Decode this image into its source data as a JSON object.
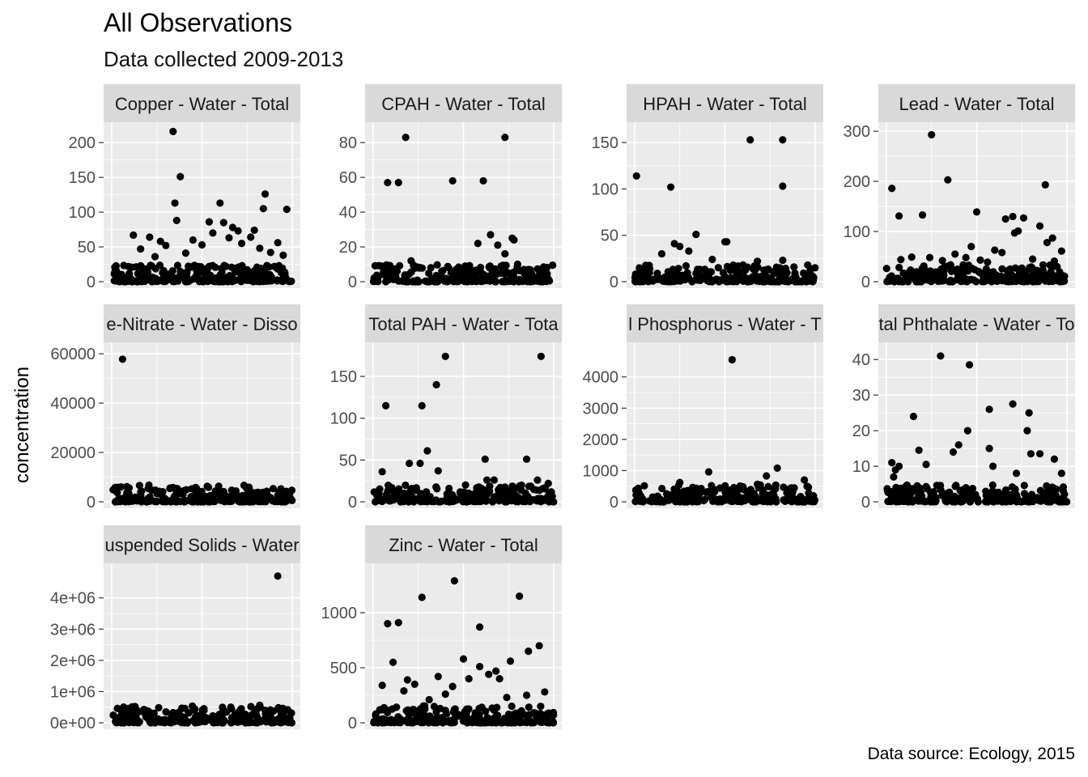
{
  "title": "All Observations",
  "subtitle": "Data collected 2009-2013",
  "caption": "Data source: Ecology, 2015",
  "chart_data": {
    "type": "scatter",
    "ylabel": "concentration",
    "xlabel": "",
    "grid": true,
    "facet_scales": "free",
    "point_color": "#000000",
    "panel_background": "#EBEBEB",
    "strip_background": "#D9D9D9",
    "panels": [
      {
        "strip": "Copper - Water - Total",
        "ylim": [
          0,
          220
        ],
        "yticks": [
          0,
          50,
          100,
          150,
          200
        ],
        "ytick_labels": [
          "0",
          "50",
          "100",
          "150",
          "200"
        ],
        "points": [
          [
            0.34,
            216
          ],
          [
            0.38,
            151
          ],
          [
            0.35,
            113
          ],
          [
            0.6,
            113
          ],
          [
            0.36,
            88
          ],
          [
            0.7,
            73
          ],
          [
            0.79,
            74
          ],
          [
            0.84,
            105
          ],
          [
            0.85,
            126
          ],
          [
            0.97,
            104
          ],
          [
            0.54,
            86
          ],
          [
            0.62,
            85
          ],
          [
            0.67,
            78
          ],
          [
            0.77,
            64
          ],
          [
            0.92,
            56
          ],
          [
            0.12,
            67
          ],
          [
            0.21,
            64
          ],
          [
            0.27,
            58
          ],
          [
            0.3,
            52
          ],
          [
            0.16,
            47
          ],
          [
            0.45,
            60
          ],
          [
            0.5,
            53
          ],
          [
            0.56,
            70
          ],
          [
            0.65,
            63
          ],
          [
            0.72,
            55
          ],
          [
            0.82,
            48
          ],
          [
            0.88,
            42
          ],
          [
            0.95,
            38
          ],
          [
            0.41,
            41
          ],
          [
            0.24,
            36
          ]
        ]
      },
      {
        "strip": "CPAH - Water - Total",
        "ylim": [
          0,
          88
        ],
        "yticks": [
          0,
          20,
          40,
          60,
          80
        ],
        "ytick_labels": [
          "0",
          "20",
          "40",
          "60",
          "80"
        ],
        "points": [
          [
            0.18,
            83
          ],
          [
            0.14,
            57
          ],
          [
            0.08,
            57
          ],
          [
            0.73,
            83
          ],
          [
            0.61,
            58
          ],
          [
            0.44,
            58
          ],
          [
            0.65,
            27
          ],
          [
            0.58,
            22
          ],
          [
            0.77,
            25
          ],
          [
            0.78,
            24
          ],
          [
            0.69,
            21
          ],
          [
            0.73,
            16
          ],
          [
            0.8,
            10
          ],
          [
            0.51,
            9
          ],
          [
            0.26,
            8
          ],
          [
            0.38,
            6
          ],
          [
            0.86,
            7
          ],
          [
            0.6,
            5
          ],
          [
            0.21,
            12
          ]
        ]
      },
      {
        "strip": "HPAH - Water - Total",
        "ylim": [
          0,
          165
        ],
        "yticks": [
          0,
          50,
          100,
          150
        ],
        "ytick_labels": [
          "0",
          "50",
          "100",
          "150"
        ],
        "points": [
          [
            0.64,
            153
          ],
          [
            0.82,
            153
          ],
          [
            0.01,
            114
          ],
          [
            0.2,
            102
          ],
          [
            0.82,
            103
          ],
          [
            0.34,
            51
          ],
          [
            0.5,
            43
          ],
          [
            0.51,
            43
          ],
          [
            0.22,
            41
          ],
          [
            0.25,
            38
          ],
          [
            0.3,
            33
          ],
          [
            0.15,
            30
          ],
          [
            0.68,
            22
          ],
          [
            0.82,
            23
          ],
          [
            0.43,
            24
          ],
          [
            0.6,
            18
          ],
          [
            0.07,
            13
          ],
          [
            0.34,
            9
          ],
          [
            0.04,
            9
          ]
        ]
      },
      {
        "strip": "Lead - Water - Total",
        "ylim": [
          0,
          305
        ],
        "yticks": [
          0,
          100,
          200,
          300
        ],
        "ytick_labels": [
          "0",
          "100",
          "200",
          "300"
        ],
        "points": [
          [
            0.25,
            293
          ],
          [
            0.03,
            186
          ],
          [
            0.34,
            203
          ],
          [
            0.88,
            193
          ],
          [
            0.07,
            131
          ],
          [
            0.2,
            133
          ],
          [
            0.5,
            139
          ],
          [
            0.7,
            130
          ],
          [
            0.66,
            125
          ],
          [
            0.76,
            127
          ],
          [
            0.73,
            101
          ],
          [
            0.71,
            97
          ],
          [
            0.85,
            111
          ],
          [
            0.92,
            87
          ],
          [
            0.89,
            78
          ],
          [
            0.47,
            70
          ],
          [
            0.6,
            63
          ],
          [
            0.64,
            58
          ],
          [
            0.97,
            61
          ],
          [
            0.44,
            48
          ],
          [
            0.08,
            44
          ],
          [
            0.14,
            49
          ],
          [
            0.24,
            48
          ],
          [
            0.31,
            42
          ],
          [
            0.38,
            55
          ],
          [
            0.52,
            43
          ],
          [
            0.56,
            39
          ],
          [
            0.81,
            45
          ],
          [
            0.93,
            41
          ]
        ]
      },
      {
        "strip": "e-Nitrate - Water - Disso",
        "ylim": [
          0,
          62000
        ],
        "yticks": [
          0,
          20000,
          40000,
          60000
        ],
        "ytick_labels": [
          "0",
          "20000",
          "40000",
          "60000"
        ],
        "points": [
          [
            0.06,
            57800
          ],
          [
            0.76,
            3500
          ],
          [
            0.61,
            2700
          ],
          [
            0.28,
            2300
          ],
          [
            0.44,
            2100
          ],
          [
            0.13,
            1900
          ],
          [
            0.88,
            1700
          ],
          [
            0.52,
            1600
          ]
        ]
      },
      {
        "strip": "Total PAH - Water - Tota",
        "ylim": [
          0,
          183
        ],
        "yticks": [
          0,
          50,
          100,
          150
        ],
        "ytick_labels": [
          "0",
          "50",
          "100",
          "150"
        ],
        "points": [
          [
            0.4,
            174
          ],
          [
            0.93,
            174
          ],
          [
            0.35,
            140
          ],
          [
            0.07,
            115
          ],
          [
            0.27,
            115
          ],
          [
            0.3,
            61
          ],
          [
            0.05,
            36
          ],
          [
            0.2,
            46
          ],
          [
            0.26,
            46
          ],
          [
            0.36,
            37
          ],
          [
            0.62,
            51
          ],
          [
            0.85,
            51
          ],
          [
            0.63,
            26
          ],
          [
            0.67,
            26
          ],
          [
            0.91,
            26
          ],
          [
            0.97,
            22
          ],
          [
            0.42,
            16
          ],
          [
            0.6,
            16
          ],
          [
            0.12,
            11
          ]
        ]
      },
      {
        "strip": "l Phosphorus - Water - T",
        "ylim": [
          0,
          4900
        ],
        "yticks": [
          0,
          1000,
          2000,
          3000,
          4000
        ],
        "ytick_labels": [
          "0",
          "1000",
          "2000",
          "3000",
          "4000"
        ],
        "points": [
          [
            0.54,
            4550
          ],
          [
            0.79,
            1080
          ],
          [
            0.41,
            960
          ],
          [
            0.73,
            830
          ],
          [
            0.94,
            700
          ],
          [
            0.25,
            620
          ],
          [
            0.68,
            560
          ],
          [
            0.6,
            480
          ],
          [
            0.86,
            420
          ],
          [
            0.32,
            390
          ]
        ]
      },
      {
        "strip": "tal Phthalate - Water - To",
        "ylim": [
          0,
          43
        ],
        "yticks": [
          0,
          10,
          20,
          30,
          40
        ],
        "ytick_labels": [
          "0",
          "10",
          "20",
          "30",
          "40"
        ],
        "points": [
          [
            0.3,
            41
          ],
          [
            0.46,
            38.5
          ],
          [
            0.57,
            26
          ],
          [
            0.7,
            27.5
          ],
          [
            0.79,
            25
          ],
          [
            0.78,
            20
          ],
          [
            0.8,
            13.5
          ],
          [
            0.85,
            13.5
          ],
          [
            0.57,
            15
          ],
          [
            0.45,
            20
          ],
          [
            0.4,
            16
          ],
          [
            0.37,
            14
          ],
          [
            0.15,
            24
          ],
          [
            0.18,
            14.5
          ],
          [
            0.03,
            11
          ],
          [
            0.04,
            7
          ],
          [
            0.05,
            9
          ],
          [
            0.07,
            10
          ],
          [
            0.22,
            10.5
          ],
          [
            0.59,
            10
          ],
          [
            0.72,
            8
          ],
          [
            0.93,
            12
          ],
          [
            0.97,
            8
          ]
        ]
      },
      {
        "strip": "uspended Solids - Water",
        "ylim": [
          0,
          4900000
        ],
        "yticks": [
          0,
          1000000,
          2000000,
          3000000,
          4000000
        ],
        "ytick_labels": [
          "0e+00",
          "1e+06",
          "2e+06",
          "3e+06",
          "4e+06"
        ],
        "points": [
          [
            0.92,
            4700000
          ],
          [
            0.82,
            560000
          ],
          [
            0.66,
            500000
          ],
          [
            0.12,
            480000
          ],
          [
            0.2,
            380000
          ],
          [
            0.07,
            300000
          ],
          [
            0.35,
            260000
          ],
          [
            0.47,
            240000
          ],
          [
            0.56,
            220000
          ],
          [
            0.74,
            270000
          ],
          [
            0.95,
            200000
          ]
        ]
      },
      {
        "strip": "Zinc - Water - Total",
        "ylim": [
          0,
          1390
        ],
        "yticks": [
          0,
          500,
          1000
        ],
        "ytick_labels": [
          "0",
          "500",
          "1000"
        ],
        "points": [
          [
            0.45,
            1290
          ],
          [
            0.27,
            1140
          ],
          [
            0.81,
            1150
          ],
          [
            0.08,
            900
          ],
          [
            0.14,
            910
          ],
          [
            0.59,
            870
          ],
          [
            0.92,
            700
          ],
          [
            0.86,
            650
          ],
          [
            0.11,
            550
          ],
          [
            0.5,
            580
          ],
          [
            0.76,
            560
          ],
          [
            0.59,
            510
          ],
          [
            0.68,
            470
          ],
          [
            0.64,
            440
          ],
          [
            0.7,
            400
          ],
          [
            0.19,
            390
          ],
          [
            0.23,
            350
          ],
          [
            0.36,
            420
          ],
          [
            0.44,
            330
          ],
          [
            0.53,
            400
          ],
          [
            0.85,
            250
          ],
          [
            0.95,
            280
          ],
          [
            0.05,
            340
          ],
          [
            0.17,
            290
          ],
          [
            0.31,
            210
          ],
          [
            0.74,
            230
          ],
          [
            0.4,
            260
          ]
        ]
      }
    ]
  }
}
